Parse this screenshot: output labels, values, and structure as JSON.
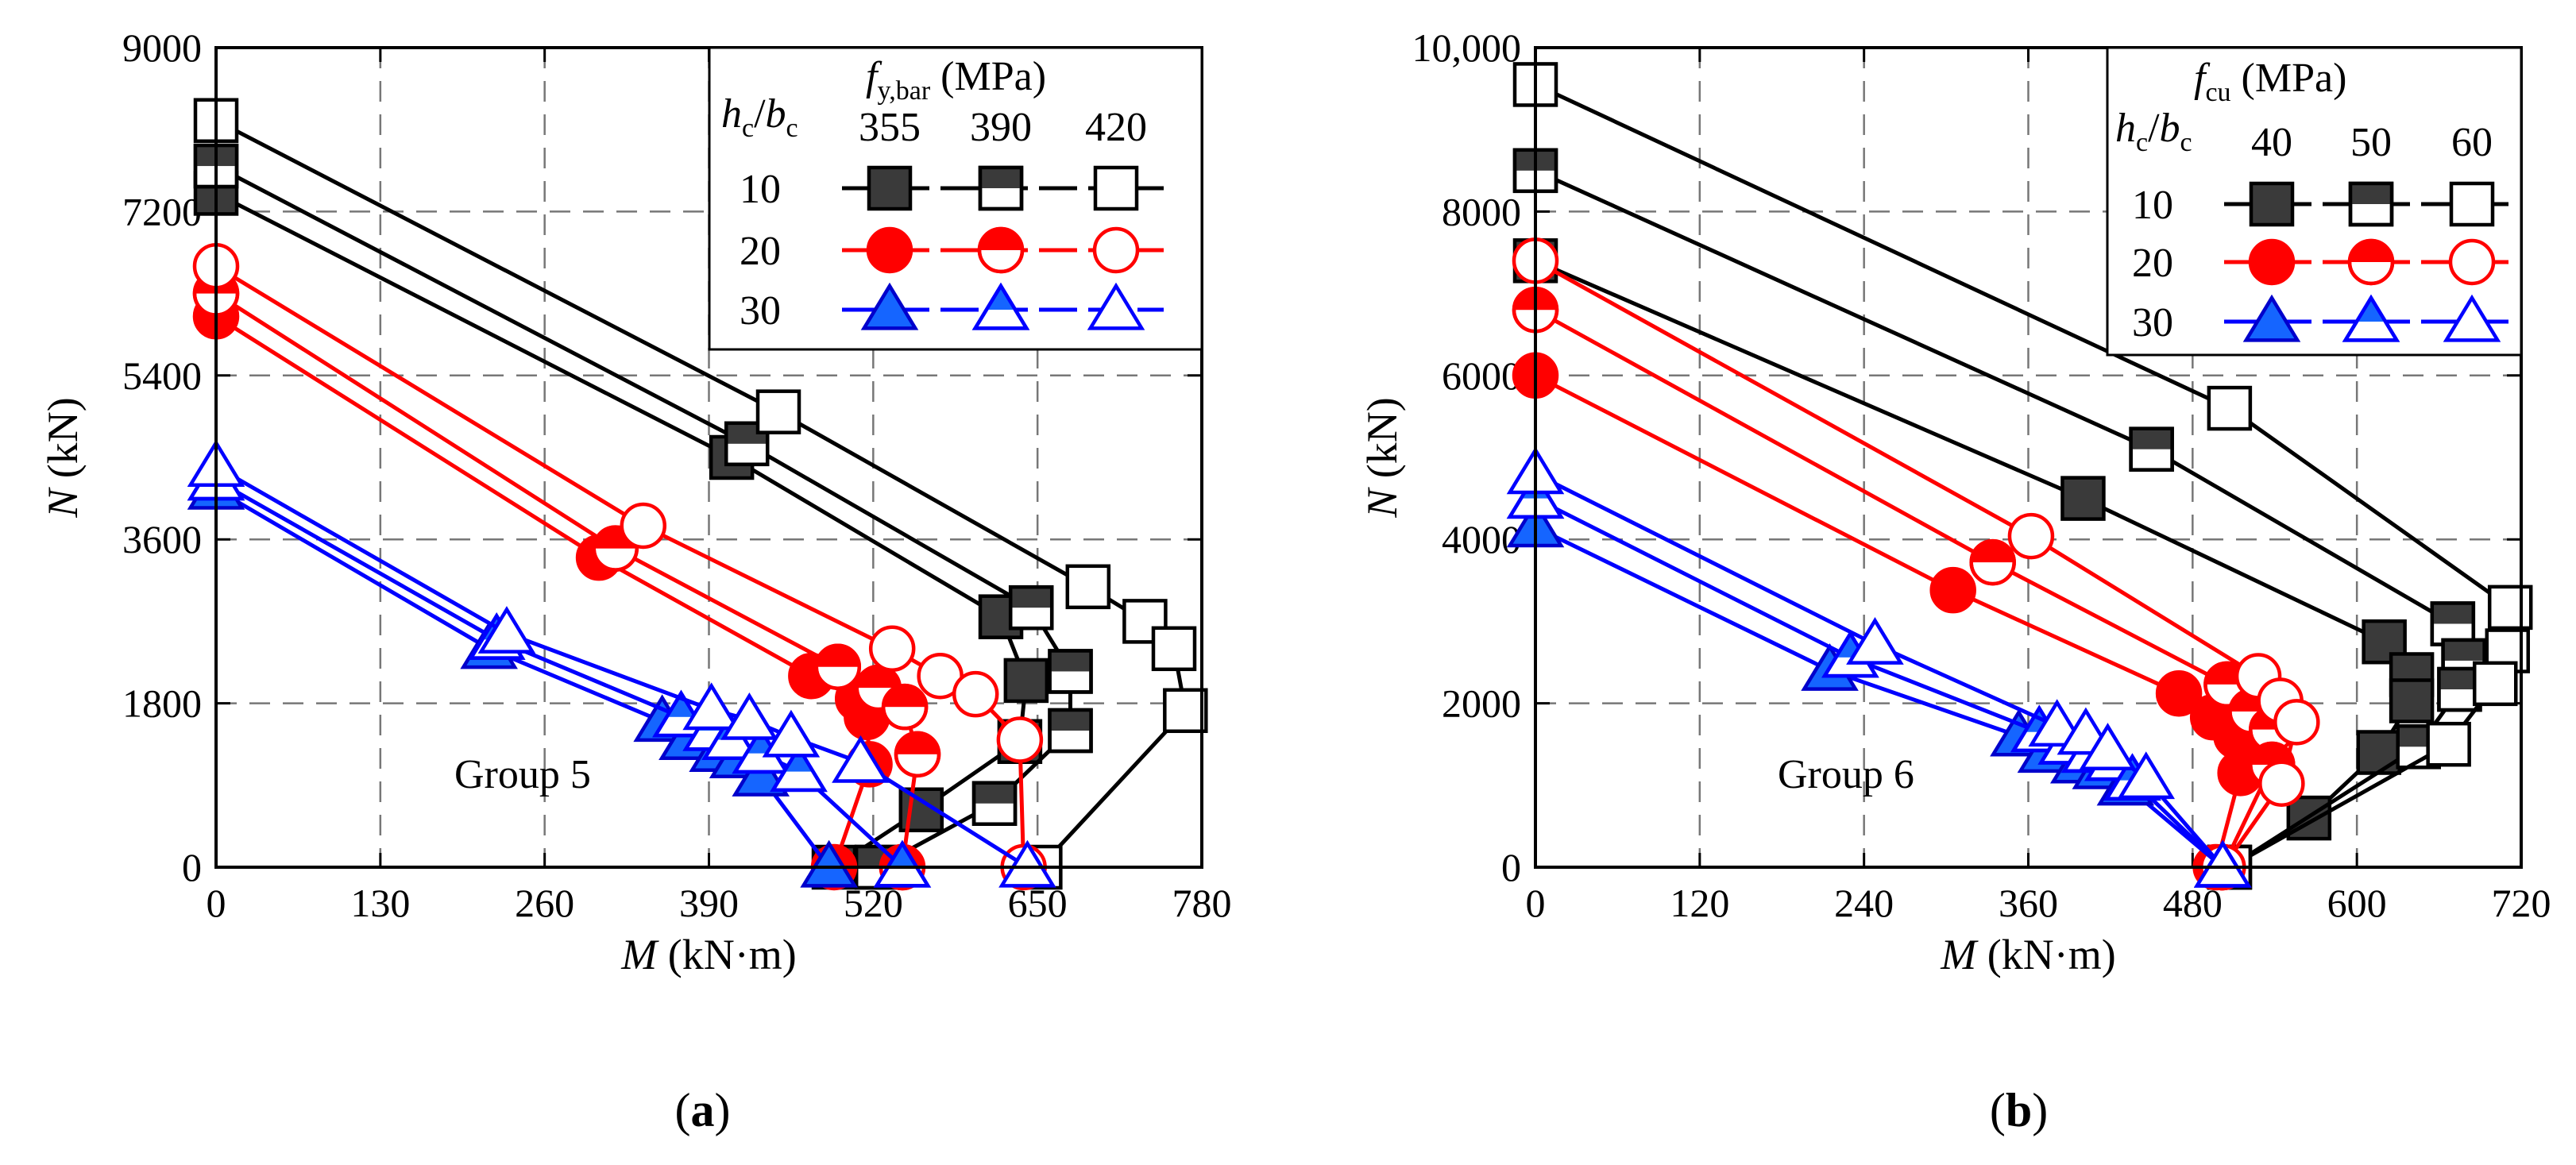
{
  "chart_data": [
    {
      "type": "line",
      "panel_label": "a",
      "group_text": "Group 5",
      "xlabel": "M",
      "xunit": "(kN·m)",
      "ylabel": "N",
      "yunit": "(kN)",
      "xlim": [
        0,
        780
      ],
      "ylim": [
        0,
        9000
      ],
      "xticks": [
        0,
        130,
        260,
        390,
        520,
        650,
        780
      ],
      "xtick_labels": [
        "0",
        "130",
        "260",
        "390",
        "520",
        "650",
        "780"
      ],
      "yticks": [
        0,
        1800,
        3600,
        5400,
        7200,
        9000
      ],
      "ytick_labels": [
        "0",
        "1800",
        "3600",
        "5400",
        "7200",
        "9000"
      ],
      "grid": true,
      "legend": {
        "placement": "top-right",
        "row_header": "hc/bc",
        "row_header_main1": "h",
        "row_header_sub1": "c",
        "row_header_slash": "/",
        "row_header_main2": "b",
        "row_header_sub2": "c",
        "col_header_main": "f",
        "col_header_sub": "y,bar",
        "col_header_unit": "(MPa)",
        "col_values": [
          "355",
          "390",
          "420"
        ],
        "row_values": [
          "10",
          "20",
          "30"
        ]
      },
      "series": [
        {
          "name": "hc/bc=10, fy,bar=355",
          "color": "#000000",
          "marker": "square",
          "fill": "full",
          "points": [
            [
              0,
              7400
            ],
            [
              408,
              4500
            ],
            [
              621,
              2750
            ],
            [
              641,
              2050
            ],
            [
              636,
              1380
            ],
            [
              558,
              630
            ],
            [
              489,
              0
            ]
          ]
        },
        {
          "name": "hc/bc=10, fy,bar=390",
          "color": "#000000",
          "marker": "square",
          "fill": "half",
          "points": [
            [
              0,
              7700
            ],
            [
              420,
              4650
            ],
            [
              645,
              2850
            ],
            [
              676,
              2150
            ],
            [
              676,
              1500
            ],
            [
              616,
              700
            ],
            [
              523,
              0
            ]
          ]
        },
        {
          "name": "hc/bc=10, fy,bar=420",
          "color": "#000000",
          "marker": "square",
          "fill": "open",
          "points": [
            [
              0,
              8200
            ],
            [
              445,
              5000
            ],
            [
              690,
              3080
            ],
            [
              735,
              2700
            ],
            [
              758,
              2400
            ],
            [
              767,
              1720
            ],
            [
              652,
              0
            ]
          ]
        },
        {
          "name": "hc/bc=20, fy,bar=355",
          "color": "#ff0000",
          "marker": "circle",
          "fill": "full",
          "points": [
            [
              0,
              6050
            ],
            [
              303,
              3400
            ],
            [
              471,
              2100
            ],
            [
              508,
              1850
            ],
            [
              515,
              1650
            ],
            [
              517,
              1130
            ],
            [
              489,
              0
            ]
          ]
        },
        {
          "name": "hc/bc=20, fy,bar=390",
          "color": "#ff0000",
          "marker": "circle",
          "fill": "half",
          "points": [
            [
              0,
              6300
            ],
            [
              316,
              3500
            ],
            [
              492,
              2200
            ],
            [
              524,
              1970
            ],
            [
              545,
              1760
            ],
            [
              555,
              1240
            ],
            [
              543,
              0
            ]
          ]
        },
        {
          "name": "hc/bc=20, fy,bar=420",
          "color": "#ff0000",
          "marker": "circle",
          "fill": "open",
          "points": [
            [
              0,
              6600
            ],
            [
              338,
              3750
            ],
            [
              535,
              2400
            ],
            [
              573,
              2100
            ],
            [
              601,
              1900
            ],
            [
              636,
              1400
            ],
            [
              639,
              0
            ]
          ]
        },
        {
          "name": "hc/bc=30, fy,bar=355",
          "color": "#0000ff",
          "marker": "triangle",
          "fill": "full",
          "points": [
            [
              0,
              4150
            ],
            [
              216,
              2400
            ],
            [
              353,
              1600
            ],
            [
              373,
              1400
            ],
            [
              397,
              1270
            ],
            [
              413,
              1200
            ],
            [
              431,
              1000
            ],
            [
              485,
              0
            ]
          ]
        },
        {
          "name": "hc/bc=30, fy,bar=390",
          "color": "#0000ff",
          "marker": "triangle",
          "fill": "half",
          "points": [
            [
              0,
              4250
            ],
            [
              222,
              2500
            ],
            [
              368,
              1650
            ],
            [
              392,
              1500
            ],
            [
              407,
              1400
            ],
            [
              431,
              1250
            ],
            [
              461,
              1050
            ],
            [
              543,
              0
            ]
          ]
        },
        {
          "name": "hc/bc=30, fy,bar=420",
          "color": "#0000ff",
          "marker": "triangle",
          "fill": "open",
          "points": [
            [
              0,
              4400
            ],
            [
              230,
              2570
            ],
            [
              392,
              1730
            ],
            [
              422,
              1620
            ],
            [
              455,
              1430
            ],
            [
              510,
              1150
            ],
            [
              642,
              0
            ]
          ]
        }
      ]
    },
    {
      "type": "line",
      "panel_label": "b",
      "group_text": "Group 6",
      "xlabel": "M",
      "xunit": "(kN·m)",
      "ylabel": "N",
      "yunit": "(kN)",
      "xlim": [
        0,
        720
      ],
      "ylim": [
        0,
        10000
      ],
      "xticks": [
        0,
        120,
        240,
        360,
        480,
        600,
        720
      ],
      "xtick_labels": [
        "0",
        "120",
        "240",
        "360",
        "480",
        "600",
        "720"
      ],
      "yticks": [
        0,
        2000,
        4000,
        6000,
        8000,
        10000
      ],
      "ytick_labels": [
        "0",
        "2000",
        "4000",
        "6000",
        "8000",
        "10,000"
      ],
      "grid": true,
      "legend": {
        "placement": "top-right",
        "row_header": "hc/bc",
        "row_header_main1": "h",
        "row_header_sub1": "c",
        "row_header_slash": "/",
        "row_header_main2": "b",
        "row_header_sub2": "c",
        "col_header_main": "f",
        "col_header_sub": "cu",
        "col_header_unit": "(MPa)",
        "col_values": [
          "40",
          "50",
          "60"
        ],
        "row_values": [
          "10",
          "20",
          "30"
        ]
      },
      "series": [
        {
          "name": "hc/bc=10, fcu=40",
          "color": "#000000",
          "marker": "square",
          "fill": "full",
          "points": [
            [
              0,
              7400
            ],
            [
              400,
              4500
            ],
            [
              620,
              2750
            ],
            [
              640,
              2350
            ],
            [
              640,
              2030
            ],
            [
              616,
              1400
            ],
            [
              565,
              600
            ],
            [
              507,
              0
            ]
          ]
        },
        {
          "name": "hc/bc=10, fcu=50",
          "color": "#000000",
          "marker": "square",
          "fill": "half",
          "points": [
            [
              0,
              8500
            ],
            [
              450,
              5100
            ],
            [
              670,
              2970
            ],
            [
              678,
              2520
            ],
            [
              675,
              2170
            ],
            [
              645,
              1470
            ],
            [
              507,
              0
            ]
          ]
        },
        {
          "name": "hc/bc=10, fcu=60",
          "color": "#000000",
          "marker": "square",
          "fill": "open",
          "points": [
            [
              0,
              9550
            ],
            [
              507,
              5600
            ],
            [
              712,
              3170
            ],
            [
              710,
              2640
            ],
            [
              701,
              2240
            ],
            [
              667,
              1500
            ],
            [
              507,
              0
            ]
          ]
        },
        {
          "name": "hc/bc=20, fcu=40",
          "color": "#ff0000",
          "marker": "circle",
          "fill": "full",
          "points": [
            [
              0,
              6000
            ],
            [
              305,
              3380
            ],
            [
              470,
              2120
            ],
            [
              495,
              1830
            ],
            [
              512,
              1600
            ],
            [
              515,
              1150
            ],
            [
              497,
              0
            ]
          ]
        },
        {
          "name": "hc/bc=20, fcu=50",
          "color": "#ff0000",
          "marker": "circle",
          "fill": "half",
          "points": [
            [
              0,
              6800
            ],
            [
              334,
              3720
            ],
            [
              505,
              2230
            ],
            [
              523,
              1900
            ],
            [
              538,
              1680
            ],
            [
              538,
              1250
            ],
            [
              502,
              0
            ]
          ]
        },
        {
          "name": "hc/bc=20, fcu=60",
          "color": "#ff0000",
          "marker": "circle",
          "fill": "open",
          "points": [
            [
              0,
              7400
            ],
            [
              362,
              4040
            ],
            [
              528,
              2330
            ],
            [
              544,
              2030
            ],
            [
              556,
              1770
            ],
            [
              545,
              1020
            ],
            [
              502,
              0
            ]
          ]
        },
        {
          "name": "hc/bc=30, fcu=40",
          "color": "#0000ff",
          "marker": "triangle",
          "fill": "full",
          "points": [
            [
              0,
              4150
            ],
            [
              215,
              2400
            ],
            [
              353,
              1600
            ],
            [
              373,
              1400
            ],
            [
              397,
              1270
            ],
            [
              413,
              1200
            ],
            [
              431,
              1000
            ],
            [
              502,
              0
            ]
          ]
        },
        {
          "name": "hc/bc=30, fcu=50",
          "color": "#0000ff",
          "marker": "triangle",
          "fill": "half",
          "points": [
            [
              0,
              4500
            ],
            [
              230,
              2560
            ],
            [
              368,
              1650
            ],
            [
              388,
              1500
            ],
            [
              405,
              1400
            ],
            [
              422,
              1300
            ],
            [
              436,
              1060
            ],
            [
              502,
              0
            ]
          ]
        },
        {
          "name": "hc/bc=30, fcu=60",
          "color": "#0000ff",
          "marker": "triangle",
          "fill": "open",
          "points": [
            [
              0,
              4800
            ],
            [
              248,
              2720
            ],
            [
              381,
              1720
            ],
            [
              402,
              1620
            ],
            [
              418,
              1430
            ],
            [
              446,
              1080
            ],
            [
              502,
              0
            ]
          ]
        }
      ]
    }
  ]
}
